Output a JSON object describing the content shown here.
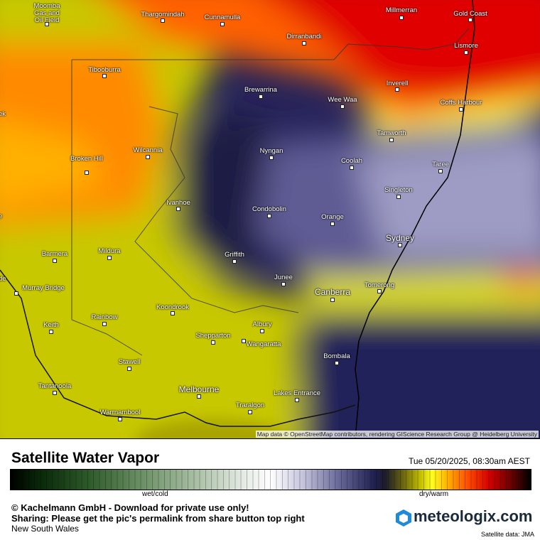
{
  "map": {
    "places": [
      "Moomba Gas and Oil Field",
      "Thargomindah",
      "Cunnamulla",
      "Millmerran",
      "Gold Coast",
      "Dirranbandi",
      "Lismore",
      "Tibooburra",
      "Brewarrina",
      "Inverell",
      "Wee Waa",
      "Coffs Harbour",
      "Tamworth",
      "Wilcannia",
      "Nyngan",
      "Coolah",
      "Broken Hill",
      "Taree",
      "Ivanhoe",
      "Singleton",
      "Condobolin",
      "Orange",
      "Sydney",
      "Barmera",
      "Mildura",
      "Griffith",
      "Junee",
      "Murray Bridge",
      "Tomerong",
      "Canberra",
      "Koondrook",
      "Rainbow",
      "Keith",
      "Albury",
      "Shepparton",
      "Wangaratta",
      "Bombala",
      "Stawell",
      "Tantanoola",
      "Melbourne",
      "Lakes Entrance",
      "Traralgon",
      "Warrnambool"
    ],
    "edge_labels": [
      "ek",
      "de",
      "e"
    ],
    "attribution": "Map data © OpenStreetMap contributors, rendering GIScience Research Group @ Heidelberg University"
  },
  "footer": {
    "title": "Satellite Water Vapor",
    "datetime": "Tue 05/20/2025, 08:30am AEST",
    "scale_left": "wet/cold",
    "scale_right": "dry/warm",
    "copyright": "© Kachelmann GmbH - Download for private use only!",
    "sharing": "Sharing: Please get the pic's permalink from share button top right",
    "region": "New South Wales",
    "logo": "meteologix.com",
    "source": "Satellite data: JMA"
  }
}
